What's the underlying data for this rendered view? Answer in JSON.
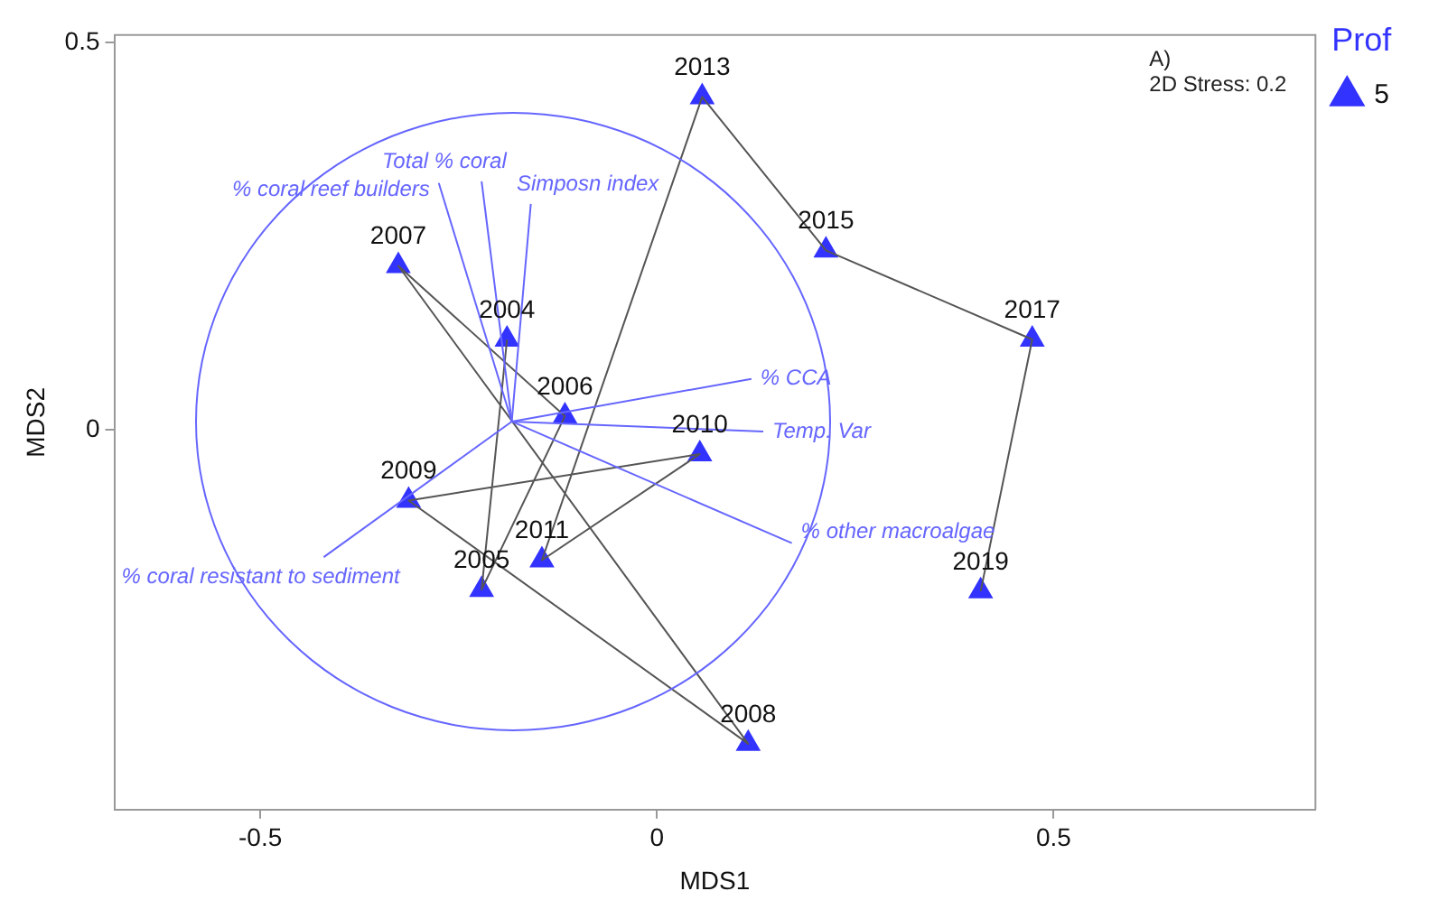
{
  "chart_data": {
    "type": "scatter",
    "xlabel": "MDS1",
    "ylabel": "MDS2",
    "xlim": [
      -0.684,
      0.83
    ],
    "ylim": [
      -0.49,
      0.51
    ],
    "xticks": [
      -0.5,
      0,
      0.5
    ],
    "yticks": [
      0,
      0.5
    ],
    "grid": false,
    "legend": "right",
    "legend_title": "Prof",
    "series": [
      {
        "type": "line",
        "color": "#6666ff",
        "x": [
          -0.275,
          -0.183
        ],
        "values": [
          0.319,
          0.011
        ]
      },
      {
        "type": "line",
        "color": "#6666ff",
        "x": [
          -0.221,
          -0.183
        ],
        "values": [
          0.321,
          0.011
        ]
      },
      {
        "type": "line",
        "color": "#6666ff",
        "x": [
          -0.183,
          -0.159
        ],
        "values": [
          0.011,
          0.292
        ]
      },
      {
        "type": "line",
        "color": "#6666ff",
        "x": [
          -0.183,
          0.119
        ],
        "values": [
          0.011,
          0.066
        ]
      },
      {
        "type": "line",
        "color": "#6666ff",
        "x": [
          -0.183,
          0.134
        ],
        "values": [
          0.011,
          -0.002
        ]
      },
      {
        "type": "line",
        "color": "#6666ff",
        "x": [
          -0.183,
          0.17
        ],
        "values": [
          0.011,
          -0.146
        ]
      },
      {
        "type": "line",
        "color": "#6666ff",
        "x": [
          -0.42,
          -0.183
        ],
        "values": [
          -0.164,
          0.011
        ]
      },
      {
        "type": "line",
        "color": "#555555",
        "x": [
          -0.189,
          -0.221,
          -0.116,
          -0.326,
          0.115,
          -0.313,
          0.054,
          -0.145,
          0.057,
          0.213,
          0.473,
          0.408
        ],
        "values": [
          0.117,
          -0.206,
          0.018,
          0.212,
          -0.405,
          -0.091,
          -0.031,
          -0.168,
          0.43,
          0.232,
          0.117,
          -0.208
        ]
      },
      {
        "type": "scatter",
        "name": "5",
        "color": "#3333ff",
        "marker": "triangle",
        "x": [
          -0.189,
          -0.221,
          -0.116,
          -0.326,
          0.115,
          -0.313,
          0.054,
          -0.145,
          0.057,
          0.213,
          0.473,
          0.408
        ],
        "values": [
          0.117,
          -0.206,
          0.018,
          0.212,
          -0.405,
          -0.091,
          -0.031,
          -0.168,
          0.43,
          0.232,
          0.117,
          -0.208
        ]
      }
    ],
    "annotations": [
      "A)",
      "2D Stress: 0.2",
      {
        "text": "2004",
        "x": -0.189,
        "y": 0.117
      },
      {
        "text": "2005",
        "x": -0.221,
        "y": -0.206
      },
      {
        "text": "2006",
        "x": -0.116,
        "y": 0.018
      },
      {
        "text": "2007",
        "x": -0.326,
        "y": 0.212
      },
      {
        "text": "2008",
        "x": 0.115,
        "y": -0.405
      },
      {
        "text": "2009",
        "x": -0.313,
        "y": -0.091
      },
      {
        "text": "2010",
        "x": 0.054,
        "y": -0.031
      },
      {
        "text": "2011",
        "x": -0.145,
        "y": -0.168
      },
      {
        "text": "2013",
        "x": 0.057,
        "y": 0.43
      },
      {
        "text": "2015",
        "x": 0.213,
        "y": 0.232
      },
      {
        "text": "2017",
        "x": 0.473,
        "y": 0.117
      },
      {
        "text": "2019",
        "x": 0.408,
        "y": -0.208
      },
      {
        "text": "% coral reef builders",
        "x": -0.275,
        "y": 0.319
      },
      {
        "text": "Total % coral",
        "x": -0.221,
        "y": 0.321
      },
      {
        "text": "Simposn index",
        "x": -0.159,
        "y": 0.292
      },
      {
        "text": "% CCA",
        "x": 0.119,
        "y": 0.066
      },
      {
        "text": "Temp. Var",
        "x": 0.134,
        "y": -0.002
      },
      {
        "text": "% other macroalgae",
        "x": 0.17,
        "y": -0.146
      },
      {
        "text": "% coral resistant to sediment",
        "x": -0.42,
        "y": -0.164
      }
    ]
  }
}
